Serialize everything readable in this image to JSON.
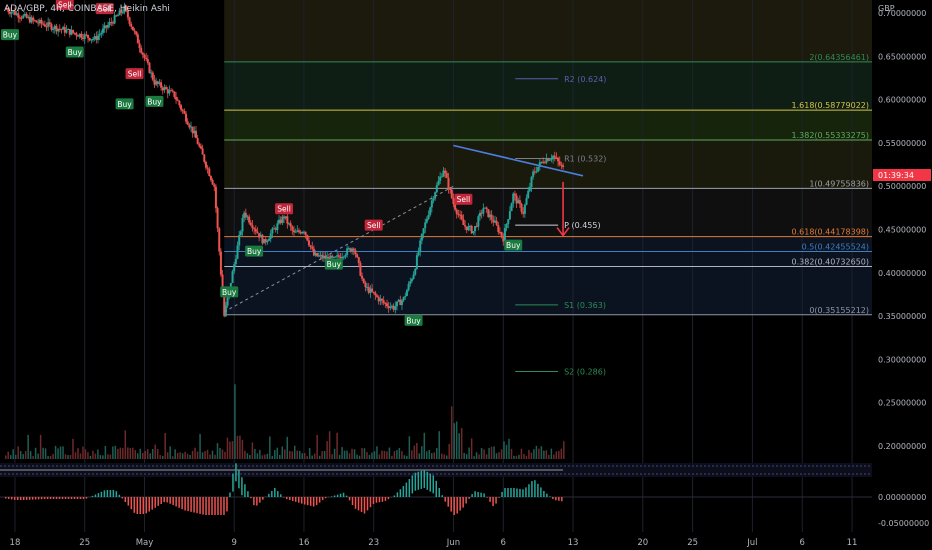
{
  "header": {
    "symbol_line": "ADA/GBP, 4h, COINBASE, Heikin Ashi",
    "currency": "GBP",
    "price_tag": "01:39:34"
  },
  "colors": {
    "bg": "#000000",
    "up": "#26a69a",
    "down": "#ef5350",
    "text": "#b2b5be",
    "grid": "#1e222d"
  },
  "chart_data": {
    "type": "candlestick",
    "title": "ADA/GBP, 4h, COINBASE, Heikin Ashi",
    "ylabel": "GBP",
    "ylim": [
      0.185,
      0.715
    ],
    "y_ticks": [
      "0.70000000",
      "0.65000000",
      "0.60000000",
      "0.55000000",
      "0.50000000",
      "0.45000000",
      "0.40000000",
      "0.35000000",
      "0.30000000",
      "0.25000000",
      "0.20000000"
    ],
    "y_tick_values": [
      0.7,
      0.65,
      0.6,
      0.55,
      0.5,
      0.45,
      0.4,
      0.35,
      0.3,
      0.25,
      0.2
    ],
    "x_ticks": [
      "18",
      "25",
      "May",
      "9",
      "16",
      "23",
      "Jun",
      "6",
      "13",
      "20",
      "25",
      "Jul",
      "6",
      "11"
    ],
    "x_tick_days": [
      0,
      7,
      13,
      22,
      29,
      36,
      44,
      49,
      56,
      63,
      68,
      74,
      79,
      84
    ],
    "x_range_days": [
      -1.5,
      86
    ],
    "price_path_days": [
      -1,
      2,
      5,
      8,
      11,
      14,
      16,
      18,
      20,
      21,
      23,
      25,
      27,
      28,
      29,
      30,
      32,
      34,
      35,
      37,
      38,
      39,
      40,
      41,
      42,
      43,
      44,
      45,
      46,
      47,
      48,
      49,
      50,
      51,
      52,
      53,
      54,
      55
    ],
    "price_path_values": [
      0.705,
      0.69,
      0.68,
      0.67,
      0.705,
      0.62,
      0.605,
      0.56,
      0.5,
      0.35,
      0.47,
      0.435,
      0.465,
      0.445,
      0.45,
      0.42,
      0.415,
      0.43,
      0.385,
      0.365,
      0.36,
      0.37,
      0.4,
      0.45,
      0.49,
      0.52,
      0.48,
      0.455,
      0.448,
      0.475,
      0.46,
      0.44,
      0.49,
      0.47,
      0.515,
      0.53,
      0.535,
      0.52
    ],
    "fib_levels": [
      {
        "label": "2(0.64356461)",
        "value": 0.64356461
      },
      {
        "label": "1.618(0.58779022)",
        "value": 0.58779022
      },
      {
        "label": "1.382(0.55333275)",
        "value": 0.55333275
      },
      {
        "label": "1(0.49755836)",
        "value": 0.49755836
      },
      {
        "label": "0.618(0.44178398)",
        "value": 0.44178398
      },
      {
        "label": "0.5(0.42455524)",
        "value": 0.42455524
      },
      {
        "label": "0.382(0.40732650)",
        "value": 0.4073265
      },
      {
        "label": "0(0.35155212)",
        "value": 0.35155212
      }
    ],
    "pivots": [
      {
        "label": "R2 (0.624)",
        "value": 0.624
      },
      {
        "label": "R1 (0.532)",
        "value": 0.532
      },
      {
        "label": "P (0.455)",
        "value": 0.455
      },
      {
        "label": "S1 (0.363)",
        "value": 0.363
      },
      {
        "label": "S2 (0.286)",
        "value": 0.286
      }
    ],
    "signals": [
      {
        "label": "Buy",
        "day": -0.5,
        "value": 0.675
      },
      {
        "label": "Sell",
        "day": 5,
        "value": 0.71
      },
      {
        "label": "Buy",
        "day": 6,
        "value": 0.655
      },
      {
        "label": "Sell",
        "day": 9,
        "value": 0.705
      },
      {
        "label": "Sell",
        "day": 12,
        "value": 0.63
      },
      {
        "label": "Buy",
        "day": 11,
        "value": 0.595
      },
      {
        "label": "Buy",
        "day": 14,
        "value": 0.598
      },
      {
        "label": "Buy",
        "day": 21.5,
        "value": 0.378
      },
      {
        "label": "Buy",
        "day": 24,
        "value": 0.425
      },
      {
        "label": "Sell",
        "day": 27,
        "value": 0.474
      },
      {
        "label": "Buy",
        "day": 32,
        "value": 0.41
      },
      {
        "label": "Sell",
        "day": 36,
        "value": 0.455
      },
      {
        "label": "Buy",
        "day": 40,
        "value": 0.345
      },
      {
        "label": "Sell",
        "day": 45,
        "value": 0.485
      },
      {
        "label": "Buy",
        "day": 50,
        "value": 0.432
      }
    ],
    "trendline": {
      "start_day": 44,
      "start_value": 0.547,
      "end_day": 57,
      "end_value": 0.512
    },
    "arrow": {
      "day": 55,
      "from_value": 0.505,
      "to_value": 0.443
    },
    "current_price": 0.506,
    "indicator_macd_ticks": [
      "0.00000000",
      "-0.05000000"
    ]
  }
}
